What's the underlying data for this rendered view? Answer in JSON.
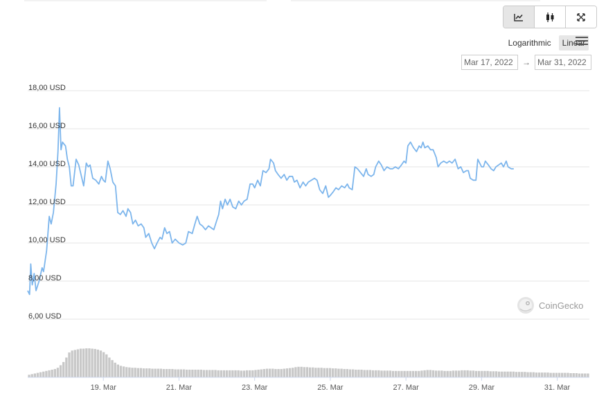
{
  "toolbar": {
    "line_icon": "line-chart-icon",
    "candle_icon": "candlestick-icon",
    "fullscreen_icon": "fullscreen-icon"
  },
  "scale": {
    "log_label": "Logarithmic",
    "linear_label": "Linear",
    "active": "Linear"
  },
  "menu_icon": "hamburger-menu-icon",
  "date_range": {
    "from": "Mar 17, 2022",
    "arrow": "→",
    "to": "Mar 31, 2022"
  },
  "credit": {
    "text": "CoinGecko",
    "icon": "coingecko-logo-icon"
  },
  "colors": {
    "line": "#7cb5ec",
    "volume": "#c8c8c8",
    "grid": "#e6e6e6"
  },
  "chart_data": {
    "type": "line",
    "ylim": [
      6,
      18
    ],
    "yticks": [
      "18,00 USD",
      "16,00 USD",
      "14,00 USD",
      "12,00 USD",
      "10,00 USD",
      "8,00 USD",
      "6,00 USD"
    ],
    "ytick_values": [
      18,
      16,
      14,
      12,
      10,
      8,
      6
    ],
    "xlim": [
      17.0,
      31.85
    ],
    "xticks": [
      "19. Mar",
      "21. Mar",
      "23. Mar",
      "25. Mar",
      "27. Mar",
      "29. Mar",
      "31. Mar"
    ],
    "xtick_values": [
      19,
      21,
      23,
      25,
      27,
      29,
      31
    ],
    "series": [
      {
        "values": [
          [
            17.0,
            7.5
          ],
          [
            17.05,
            7.3
          ],
          [
            17.08,
            8.9
          ],
          [
            17.12,
            7.8
          ],
          [
            17.17,
            8.4
          ],
          [
            17.22,
            7.5
          ],
          [
            17.3,
            8.0
          ],
          [
            17.38,
            8.7
          ],
          [
            17.42,
            8.5
          ],
          [
            17.5,
            9.6
          ],
          [
            17.57,
            11.4
          ],
          [
            17.62,
            11.0
          ],
          [
            17.68,
            11.6
          ],
          [
            17.75,
            13.1
          ],
          [
            17.8,
            14.8
          ],
          [
            17.84,
            17.1
          ],
          [
            17.88,
            14.9
          ],
          [
            17.92,
            15.3
          ],
          [
            18.0,
            15.1
          ],
          [
            18.05,
            14.4
          ],
          [
            18.1,
            14.0
          ],
          [
            18.15,
            13.0
          ],
          [
            18.2,
            13.0
          ],
          [
            18.28,
            14.4
          ],
          [
            18.35,
            14.1
          ],
          [
            18.42,
            13.5
          ],
          [
            18.48,
            13.0
          ],
          [
            18.55,
            14.2
          ],
          [
            18.6,
            14.0
          ],
          [
            18.65,
            14.1
          ],
          [
            18.72,
            13.4
          ],
          [
            18.8,
            13.3
          ],
          [
            18.88,
            13.1
          ],
          [
            18.95,
            13.5
          ],
          [
            19.0,
            13.3
          ],
          [
            19.05,
            13.2
          ],
          [
            19.12,
            14.3
          ],
          [
            19.18,
            13.9
          ],
          [
            19.25,
            13.2
          ],
          [
            19.32,
            13.0
          ],
          [
            19.38,
            11.6
          ],
          [
            19.45,
            11.5
          ],
          [
            19.52,
            11.7
          ],
          [
            19.6,
            11.4
          ],
          [
            19.65,
            11.8
          ],
          [
            19.72,
            11.6
          ],
          [
            19.78,
            11.0
          ],
          [
            19.85,
            11.2
          ],
          [
            19.92,
            10.9
          ],
          [
            20.0,
            11.0
          ],
          [
            20.07,
            10.8
          ],
          [
            20.12,
            10.3
          ],
          [
            20.2,
            10.5
          ],
          [
            20.28,
            10.0
          ],
          [
            20.35,
            9.7
          ],
          [
            20.42,
            10.0
          ],
          [
            20.5,
            10.3
          ],
          [
            20.55,
            10.2
          ],
          [
            20.62,
            10.8
          ],
          [
            20.68,
            10.5
          ],
          [
            20.75,
            10.6
          ],
          [
            20.82,
            10.0
          ],
          [
            20.9,
            10.2
          ],
          [
            21.0,
            10.0
          ],
          [
            21.1,
            9.9
          ],
          [
            21.18,
            10.0
          ],
          [
            21.25,
            10.6
          ],
          [
            21.35,
            10.5
          ],
          [
            21.42,
            11.0
          ],
          [
            21.48,
            11.4
          ],
          [
            21.55,
            11.0
          ],
          [
            21.62,
            10.9
          ],
          [
            21.7,
            10.7
          ],
          [
            21.78,
            10.9
          ],
          [
            21.85,
            10.8
          ],
          [
            21.92,
            10.7
          ],
          [
            22.0,
            11.2
          ],
          [
            22.05,
            11.5
          ],
          [
            22.1,
            12.2
          ],
          [
            22.15,
            11.8
          ],
          [
            22.22,
            12.3
          ],
          [
            22.28,
            12.0
          ],
          [
            22.35,
            12.3
          ],
          [
            22.42,
            11.9
          ],
          [
            22.5,
            11.8
          ],
          [
            22.58,
            12.2
          ],
          [
            22.65,
            12.0
          ],
          [
            22.72,
            12.2
          ],
          [
            22.8,
            12.3
          ],
          [
            22.88,
            13.1
          ],
          [
            22.95,
            13.1
          ],
          [
            23.0,
            12.9
          ],
          [
            23.08,
            13.3
          ],
          [
            23.15,
            13.0
          ],
          [
            23.22,
            13.8
          ],
          [
            23.3,
            13.7
          ],
          [
            23.38,
            13.9
          ],
          [
            23.42,
            14.4
          ],
          [
            23.5,
            14.2
          ],
          [
            23.55,
            13.8
          ],
          [
            23.62,
            13.6
          ],
          [
            23.7,
            13.4
          ],
          [
            23.78,
            13.6
          ],
          [
            23.85,
            13.3
          ],
          [
            23.92,
            13.5
          ],
          [
            24.0,
            13.5
          ],
          [
            24.05,
            13.2
          ],
          [
            24.12,
            13.3
          ],
          [
            24.2,
            12.9
          ],
          [
            24.28,
            13.2
          ],
          [
            24.35,
            13.0
          ],
          [
            24.42,
            13.2
          ],
          [
            24.5,
            13.3
          ],
          [
            24.58,
            13.4
          ],
          [
            24.65,
            13.3
          ],
          [
            24.72,
            12.8
          ],
          [
            24.8,
            12.6
          ],
          [
            24.88,
            13.0
          ],
          [
            24.95,
            12.4
          ],
          [
            25.0,
            12.5
          ],
          [
            25.08,
            12.7
          ],
          [
            25.15,
            12.9
          ],
          [
            25.22,
            12.8
          ],
          [
            25.3,
            13.0
          ],
          [
            25.38,
            12.9
          ],
          [
            25.45,
            13.1
          ],
          [
            25.5,
            12.9
          ],
          [
            25.58,
            12.8
          ],
          [
            25.65,
            14.0
          ],
          [
            25.72,
            13.9
          ],
          [
            25.8,
            13.7
          ],
          [
            25.88,
            13.5
          ],
          [
            25.95,
            13.9
          ],
          [
            26.0,
            13.6
          ],
          [
            26.08,
            13.5
          ],
          [
            26.15,
            13.6
          ],
          [
            26.2,
            14.0
          ],
          [
            26.28,
            14.3
          ],
          [
            26.35,
            14.1
          ],
          [
            26.42,
            13.8
          ],
          [
            26.5,
            14.0
          ],
          [
            26.58,
            13.9
          ],
          [
            26.65,
            13.9
          ],
          [
            26.72,
            14.0
          ],
          [
            26.8,
            13.9
          ],
          [
            26.88,
            14.1
          ],
          [
            26.95,
            14.3
          ],
          [
            27.0,
            14.2
          ],
          [
            27.05,
            15.1
          ],
          [
            27.12,
            15.3
          ],
          [
            27.2,
            15.0
          ],
          [
            27.28,
            14.8
          ],
          [
            27.35,
            15.1
          ],
          [
            27.4,
            15.0
          ],
          [
            27.45,
            15.3
          ],
          [
            27.5,
            15.0
          ],
          [
            27.58,
            15.1
          ],
          [
            27.65,
            14.9
          ],
          [
            27.72,
            14.9
          ],
          [
            27.8,
            14.5
          ],
          [
            27.85,
            14.0
          ],
          [
            27.92,
            14.2
          ],
          [
            28.0,
            14.3
          ],
          [
            28.08,
            14.2
          ],
          [
            28.15,
            14.3
          ],
          [
            28.22,
            14.2
          ],
          [
            28.3,
            14.4
          ],
          [
            28.38,
            13.9
          ],
          [
            28.45,
            14.0
          ],
          [
            28.52,
            13.7
          ],
          [
            28.6,
            13.8
          ],
          [
            28.65,
            13.8
          ],
          [
            28.7,
            13.4
          ],
          [
            28.78,
            13.3
          ],
          [
            28.85,
            13.3
          ],
          [
            28.9,
            14.4
          ],
          [
            28.95,
            14.2
          ],
          [
            29.0,
            14.0
          ],
          [
            29.05,
            14.0
          ],
          [
            29.1,
            14.3
          ],
          [
            29.18,
            14.1
          ],
          [
            29.25,
            13.9
          ],
          [
            29.32,
            13.8
          ],
          [
            29.38,
            14.0
          ],
          [
            29.45,
            14.1
          ],
          [
            29.52,
            14.2
          ],
          [
            29.58,
            14.0
          ],
          [
            29.65,
            14.3
          ],
          [
            29.7,
            14.0
          ],
          [
            29.78,
            13.9
          ],
          [
            29.85,
            13.9
          ]
        ]
      }
    ],
    "volume_relative": [
      0.08,
      0.1,
      0.12,
      0.14,
      0.16,
      0.18,
      0.2,
      0.22,
      0.24,
      0.26,
      0.3,
      0.38,
      0.48,
      0.62,
      0.78,
      0.84,
      0.86,
      0.88,
      0.9,
      0.9,
      0.91,
      0.91,
      0.9,
      0.89,
      0.87,
      0.84,
      0.79,
      0.72,
      0.62,
      0.54,
      0.46,
      0.4,
      0.36,
      0.34,
      0.32,
      0.31,
      0.3,
      0.3,
      0.29,
      0.29,
      0.28,
      0.28,
      0.28,
      0.27,
      0.27,
      0.27,
      0.27,
      0.26,
      0.26,
      0.26,
      0.26,
      0.25,
      0.25,
      0.25,
      0.25,
      0.24,
      0.24,
      0.24,
      0.24,
      0.24,
      0.24,
      0.23,
      0.23,
      0.23,
      0.23,
      0.23,
      0.22,
      0.22,
      0.22,
      0.22,
      0.22,
      0.22,
      0.22,
      0.22,
      0.21,
      0.21,
      0.22,
      0.22,
      0.22,
      0.23,
      0.24,
      0.25,
      0.26,
      0.27,
      0.27,
      0.27,
      0.26,
      0.26,
      0.26,
      0.27,
      0.28,
      0.29,
      0.3,
      0.32,
      0.33,
      0.33,
      0.32,
      0.32,
      0.31,
      0.31,
      0.3,
      0.3,
      0.3,
      0.29,
      0.29,
      0.29,
      0.28,
      0.28,
      0.27,
      0.27,
      0.26,
      0.26,
      0.25,
      0.25,
      0.24,
      0.24,
      0.24,
      0.23,
      0.23,
      0.23,
      0.22,
      0.22,
      0.22,
      0.21,
      0.21,
      0.21,
      0.21,
      0.2,
      0.2,
      0.2,
      0.2,
      0.2,
      0.2,
      0.2,
      0.2,
      0.2,
      0.2,
      0.21,
      0.22,
      0.23,
      0.23,
      0.22,
      0.21,
      0.21,
      0.21,
      0.2,
      0.2,
      0.2,
      0.21,
      0.21,
      0.21,
      0.22,
      0.22,
      0.22,
      0.21,
      0.21,
      0.2,
      0.2,
      0.2,
      0.2,
      0.2,
      0.19,
      0.19,
      0.19,
      0.18,
      0.18,
      0.18,
      0.18,
      0.18,
      0.18,
      0.17,
      0.17,
      0.17,
      0.17,
      0.16,
      0.16,
      0.16,
      0.15,
      0.15,
      0.15,
      0.15,
      0.15,
      0.14,
      0.14,
      0.14,
      0.14,
      0.14,
      0.14,
      0.14,
      0.13,
      0.13,
      0.13,
      0.12,
      0.12,
      0.12,
      0.12
    ]
  }
}
